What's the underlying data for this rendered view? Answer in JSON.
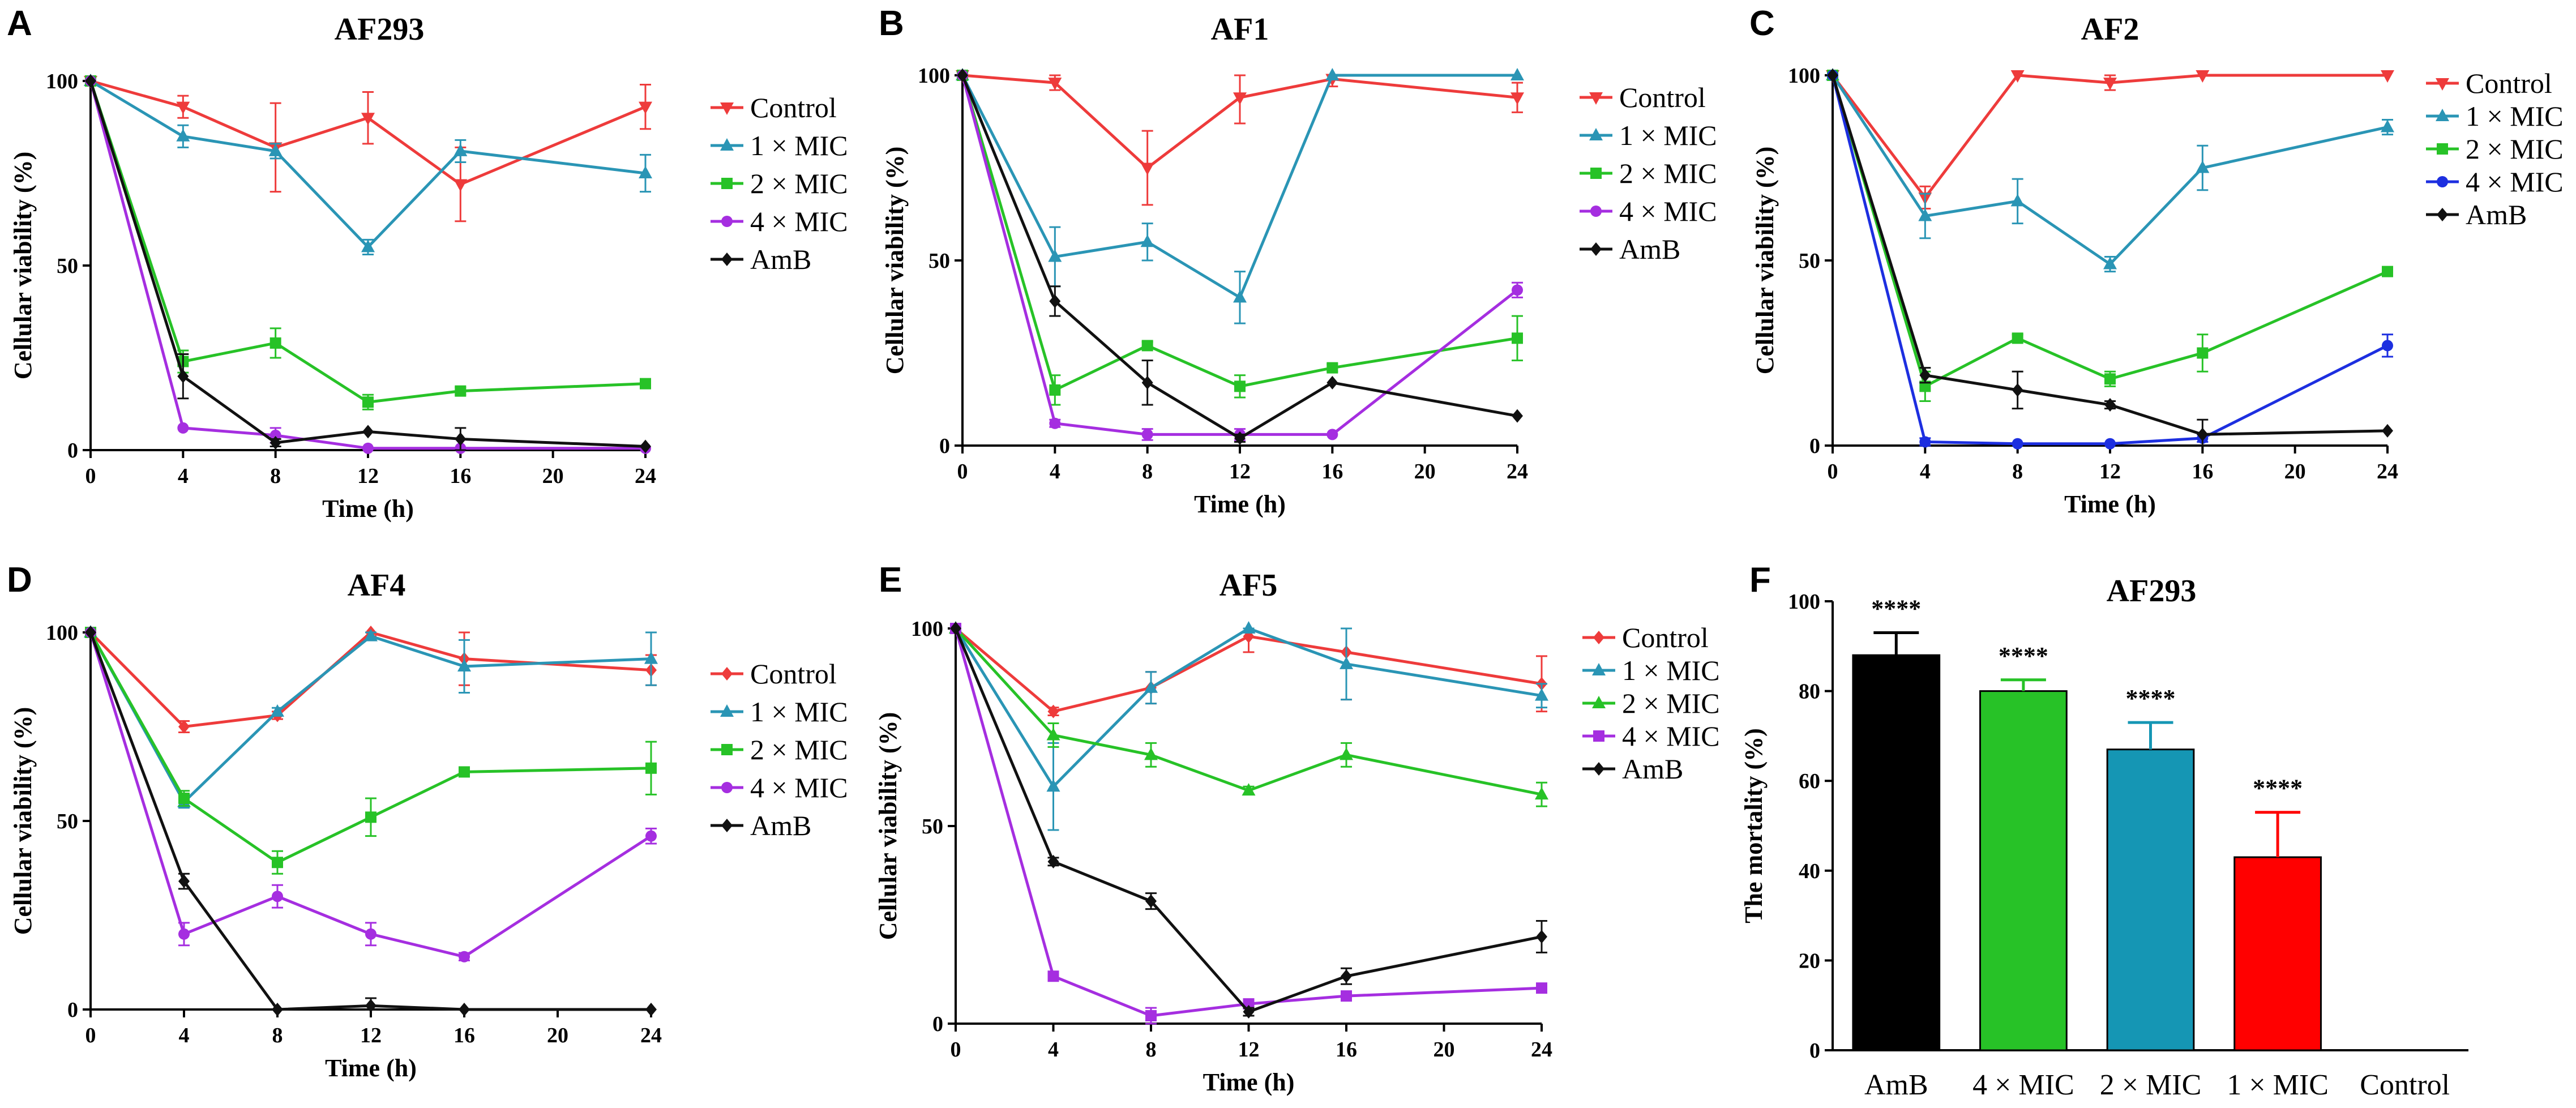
{
  "figure": {
    "title": "Antifungal time-kill and mortality panels"
  },
  "chart_data": [
    {
      "panel": "A",
      "type": "line",
      "title": "AF293",
      "xlabel": "Time (h)",
      "ylabel": "Cellular viability (%)",
      "x": [
        0,
        4,
        8,
        12,
        16,
        20,
        24
      ],
      "xlim": [
        0,
        24
      ],
      "ylim": [
        0,
        100
      ],
      "xticks": [
        0,
        4,
        8,
        12,
        16,
        20,
        24
      ],
      "yticks": [
        0,
        50,
        100
      ],
      "series": [
        {
          "name": "Control",
          "color": "#ee3b3b",
          "marker": "tri-down",
          "x": [
            0,
            4,
            8,
            12,
            16,
            24
          ],
          "values": [
            100,
            93,
            82,
            90,
            72,
            93
          ],
          "errors": [
            0,
            3,
            12,
            7,
            10,
            6
          ]
        },
        {
          "name": "1 × MIC",
          "color": "#2a95b5",
          "marker": "tri-up",
          "x": [
            0,
            4,
            8,
            12,
            16,
            24
          ],
          "values": [
            100,
            85,
            81,
            55,
            81,
            75
          ],
          "errors": [
            0,
            3,
            2,
            2,
            3,
            5
          ]
        },
        {
          "name": "2 × MIC",
          "color": "#27c227",
          "marker": "square",
          "x": [
            0,
            4,
            8,
            12,
            16,
            24
          ],
          "values": [
            100,
            24,
            29,
            13,
            16,
            18
          ],
          "errors": [
            0,
            3,
            4,
            2,
            1,
            1
          ]
        },
        {
          "name": "4 × MIC",
          "color": "#a52ee0",
          "marker": "circle",
          "x": [
            0,
            4,
            8,
            12,
            16,
            24
          ],
          "values": [
            100,
            6,
            4,
            0.5,
            0.5,
            0.5
          ],
          "errors": [
            0,
            0.5,
            2,
            0.3,
            0.3,
            0.3
          ]
        },
        {
          "name": "AmB",
          "color": "#111111",
          "marker": "diamond",
          "x": [
            0,
            4,
            8,
            12,
            16,
            24
          ],
          "values": [
            100,
            20,
            2,
            5,
            3,
            1
          ],
          "errors": [
            0,
            6,
            1,
            0.5,
            3,
            0.5
          ]
        }
      ]
    },
    {
      "panel": "B",
      "type": "line",
      "title": "AF1",
      "xlabel": "Time (h)",
      "ylabel": "Cellular viability (%)",
      "x": [
        0,
        4,
        8,
        12,
        16,
        20,
        24
      ],
      "xlim": [
        0,
        24
      ],
      "ylim": [
        0,
        100
      ],
      "xticks": [
        0,
        4,
        8,
        12,
        16,
        20,
        24
      ],
      "yticks": [
        0,
        50,
        100
      ],
      "series": [
        {
          "name": "Control",
          "color": "#ee3b3b",
          "marker": "tri-down",
          "x": [
            0,
            4,
            8,
            12,
            16,
            24
          ],
          "values": [
            100,
            98,
            75,
            94,
            99,
            94
          ],
          "errors": [
            0,
            2,
            10,
            7,
            2,
            4
          ]
        },
        {
          "name": "1 × MIC",
          "color": "#2a95b5",
          "marker": "tri-up",
          "x": [
            0,
            4,
            8,
            12,
            16,
            24
          ],
          "values": [
            100,
            51,
            55,
            40,
            100,
            100
          ],
          "errors": [
            0,
            8,
            5,
            7,
            0.5,
            0.5
          ]
        },
        {
          "name": "2 × MIC",
          "color": "#27c227",
          "marker": "square",
          "x": [
            0,
            4,
            8,
            12,
            16,
            24
          ],
          "values": [
            100,
            15,
            27,
            16,
            21,
            29
          ],
          "errors": [
            0,
            4,
            1,
            3,
            1,
            6
          ]
        },
        {
          "name": "4 × MIC",
          "color": "#a52ee0",
          "marker": "circle",
          "x": [
            0,
            4,
            8,
            12,
            16,
            24
          ],
          "values": [
            100,
            6,
            3,
            3,
            3,
            42
          ],
          "errors": [
            0,
            1,
            1.5,
            1.5,
            0.5,
            2
          ]
        },
        {
          "name": "AmB",
          "color": "#111111",
          "marker": "diamond",
          "x": [
            0,
            4,
            8,
            12,
            16,
            24
          ],
          "values": [
            100,
            39,
            17,
            2,
            17,
            8
          ],
          "errors": [
            0,
            4,
            6,
            1,
            0.5,
            0.5
          ]
        }
      ]
    },
    {
      "panel": "C",
      "type": "line",
      "title": "AF2",
      "xlabel": "Time (h)",
      "ylabel": "Cellular viability (%)",
      "x": [
        0,
        4,
        8,
        12,
        16,
        20,
        24
      ],
      "xlim": [
        0,
        24
      ],
      "ylim": [
        0,
        100
      ],
      "xticks": [
        0,
        4,
        8,
        12,
        16,
        20,
        24
      ],
      "yticks": [
        0,
        50,
        100
      ],
      "series": [
        {
          "name": "Control",
          "color": "#ee3b3b",
          "marker": "tri-down",
          "x": [
            0,
            4,
            8,
            12,
            16,
            24
          ],
          "values": [
            100,
            67,
            100,
            98,
            100,
            100
          ],
          "errors": [
            0,
            3,
            0.5,
            2,
            0.5,
            0.5
          ]
        },
        {
          "name": "1 × MIC",
          "color": "#2a95b5",
          "marker": "tri-up",
          "x": [
            0,
            4,
            8,
            12,
            16,
            24
          ],
          "values": [
            100,
            62,
            66,
            49,
            75,
            86
          ],
          "errors": [
            0,
            6,
            6,
            2,
            6,
            2
          ]
        },
        {
          "name": "2 × MIC",
          "color": "#27c227",
          "marker": "square",
          "x": [
            0,
            4,
            8,
            12,
            16,
            24
          ],
          "values": [
            100,
            16,
            29,
            18,
            25,
            47
          ],
          "errors": [
            0,
            4,
            1,
            2,
            5,
            0.5
          ]
        },
        {
          "name": "4 × MIC",
          "color": "#1d2fe0",
          "marker": "circle",
          "x": [
            0,
            4,
            8,
            12,
            16,
            24
          ],
          "values": [
            100,
            1,
            0.5,
            0.5,
            2,
            27
          ],
          "errors": [
            0,
            1,
            0.3,
            0.3,
            1,
            3
          ]
        },
        {
          "name": "AmB",
          "color": "#111111",
          "marker": "diamond",
          "x": [
            0,
            4,
            8,
            12,
            16,
            24
          ],
          "values": [
            100,
            19,
            15,
            11,
            3,
            4
          ],
          "errors": [
            0,
            2,
            5,
            1,
            4,
            0.5
          ]
        }
      ]
    },
    {
      "panel": "D",
      "type": "line",
      "title": "AF4",
      "xlabel": "Time (h)",
      "ylabel": "Cellular viability (%)",
      "x": [
        0,
        4,
        8,
        12,
        16,
        20,
        24
      ],
      "xlim": [
        0,
        24
      ],
      "ylim": [
        0,
        100
      ],
      "xticks": [
        0,
        4,
        8,
        12,
        16,
        20,
        24
      ],
      "yticks": [
        0,
        50,
        100
      ],
      "series": [
        {
          "name": "Control",
          "color": "#ee3b3b",
          "marker": "diamond",
          "x": [
            0,
            4,
            8,
            12,
            16,
            24
          ],
          "values": [
            100,
            75,
            78,
            100,
            93,
            90
          ],
          "errors": [
            0,
            1.5,
            1,
            1,
            7,
            4
          ]
        },
        {
          "name": "1 × MIC",
          "color": "#2a95b5",
          "marker": "tri-up",
          "x": [
            0,
            4,
            8,
            12,
            16,
            24
          ],
          "values": [
            100,
            55,
            79,
            99,
            91,
            93
          ],
          "errors": [
            0,
            1.5,
            1,
            1,
            7,
            7
          ]
        },
        {
          "name": "2 × MIC",
          "color": "#27c227",
          "marker": "square",
          "x": [
            0,
            4,
            8,
            12,
            16,
            24
          ],
          "values": [
            100,
            56,
            39,
            51,
            63,
            64
          ],
          "errors": [
            0,
            2,
            3,
            5,
            1,
            7
          ]
        },
        {
          "name": "4 × MIC",
          "color": "#a52ee0",
          "marker": "circle",
          "x": [
            0,
            4,
            8,
            12,
            16,
            24
          ],
          "values": [
            100,
            20,
            30,
            20,
            14,
            46
          ],
          "errors": [
            0,
            3,
            3,
            3,
            1,
            2
          ]
        },
        {
          "name": "AmB",
          "color": "#111111",
          "marker": "diamond",
          "x": [
            0,
            4,
            8,
            12,
            16,
            24
          ],
          "values": [
            100,
            34,
            0,
            1,
            0,
            0
          ],
          "errors": [
            0,
            2,
            0.3,
            2,
            0.3,
            0.3
          ]
        }
      ]
    },
    {
      "panel": "E",
      "type": "line",
      "title": "AF5",
      "xlabel": "Time (h)",
      "ylabel": "Cellular viability (%)",
      "x": [
        0,
        4,
        8,
        12,
        16,
        20,
        24
      ],
      "xlim": [
        0,
        24
      ],
      "ylim": [
        0,
        100
      ],
      "xticks": [
        0,
        4,
        8,
        12,
        16,
        20,
        24
      ],
      "yticks": [
        0,
        50,
        100
      ],
      "series": [
        {
          "name": "Control",
          "color": "#ee3b3b",
          "marker": "diamond",
          "x": [
            0,
            4,
            8,
            12,
            16,
            24
          ],
          "values": [
            100,
            79,
            85,
            98,
            94,
            86
          ],
          "errors": [
            0,
            1,
            4,
            4,
            12,
            7
          ]
        },
        {
          "name": "1 × MIC",
          "color": "#2a95b5",
          "marker": "tri-up",
          "x": [
            0,
            4,
            8,
            12,
            16,
            24
          ],
          "values": [
            100,
            60,
            85,
            100,
            91,
            83
          ],
          "errors": [
            0,
            11,
            4,
            1,
            9,
            3
          ]
        },
        {
          "name": "2 × MIC",
          "color": "#27c227",
          "marker": "tri-up",
          "x": [
            0,
            4,
            8,
            12,
            16,
            24
          ],
          "values": [
            100,
            73,
            68,
            59,
            68,
            58
          ],
          "errors": [
            0,
            3,
            3,
            1,
            3,
            3
          ]
        },
        {
          "name": "4 × MIC",
          "color": "#a52ee0",
          "marker": "square",
          "x": [
            0,
            4,
            8,
            12,
            16,
            24
          ],
          "values": [
            100,
            12,
            2,
            5,
            7,
            9
          ],
          "errors": [
            0,
            1,
            2,
            1,
            1,
            1
          ]
        },
        {
          "name": "AmB",
          "color": "#111111",
          "marker": "diamond",
          "x": [
            0,
            4,
            8,
            12,
            16,
            24
          ],
          "values": [
            100,
            41,
            31,
            3,
            12,
            22
          ],
          "errors": [
            0,
            1,
            2,
            1,
            2,
            4
          ]
        }
      ]
    },
    {
      "panel": "F",
      "type": "bar",
      "title": "AF293",
      "xlabel": "",
      "ylabel": "The mortality (%)",
      "categories": [
        "AmB",
        "4 × MIC",
        "2 × MIC",
        "1 × MIC",
        "Control"
      ],
      "values": [
        88,
        80,
        67,
        43,
        0
      ],
      "errors": [
        5,
        2.5,
        6,
        10,
        0
      ],
      "colors": [
        "#000000",
        "#27c227",
        "#1596b4",
        "#ff0000",
        "#ffffff"
      ],
      "annotations": [
        "****",
        "****",
        "****",
        "****",
        ""
      ],
      "ylim": [
        0,
        100
      ],
      "yticks": [
        0,
        20,
        40,
        60,
        80,
        100
      ]
    }
  ]
}
